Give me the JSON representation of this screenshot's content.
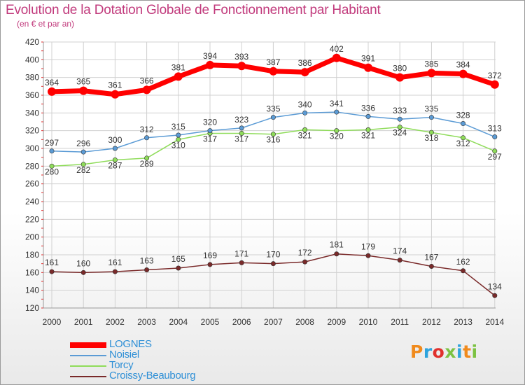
{
  "header": {
    "title": "Evolution de la Dotation Globale de Fonctionnement par Habitant",
    "subtitle": "(en € et par an)"
  },
  "colors": {
    "title": "#c13a7c",
    "grid": "#d0d0d0"
  },
  "logo": {
    "text": "Proxiti",
    "colors": [
      "#f08a1c",
      "#2ea3dc",
      "#e0312d",
      "#7cc242",
      "#2ea3dc",
      "#f08a1c",
      "#7cc242"
    ]
  },
  "chart_data": {
    "type": "line",
    "title": "Evolution de la Dotation Globale de Fonctionnement par Habitant",
    "subtitle": "(en € et par an)",
    "x": [
      "2000",
      "2001",
      "2002",
      "2003",
      "2004",
      "2005",
      "2006",
      "2007",
      "2008",
      "2009",
      "2010",
      "2011",
      "2012",
      "2013",
      "2014"
    ],
    "ylim": [
      120,
      420
    ],
    "yticks": [
      120,
      140,
      160,
      180,
      200,
      220,
      240,
      260,
      280,
      300,
      320,
      340,
      360,
      380,
      400,
      420
    ],
    "grid": true,
    "legend_position": "bottom-left",
    "series": [
      {
        "name": "LOGNES",
        "color": "#ff0000",
        "values": [
          364,
          365,
          361,
          366,
          381,
          394,
          393,
          387,
          386,
          402,
          391,
          380,
          385,
          384,
          372
        ]
      },
      {
        "name": "Noisiel",
        "color": "#5b9bd5",
        "values": [
          297,
          296,
          300,
          312,
          315,
          320,
          323,
          335,
          340,
          341,
          336,
          333,
          335,
          328,
          313
        ]
      },
      {
        "name": "Torcy",
        "color": "#8fdc5a",
        "values": [
          280,
          282,
          287,
          289,
          310,
          317,
          317,
          316,
          321,
          320,
          321,
          324,
          318,
          312,
          297
        ]
      },
      {
        "name": "Croissy-Beaubourg",
        "color": "#7a2a2a",
        "values": [
          161,
          160,
          161,
          163,
          165,
          169,
          171,
          170,
          172,
          181,
          179,
          174,
          167,
          162,
          134
        ]
      }
    ]
  }
}
